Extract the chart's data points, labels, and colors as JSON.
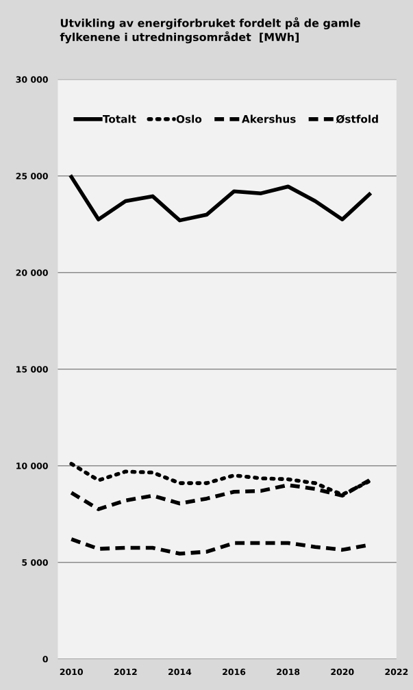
{
  "chart_data": {
    "type": "line",
    "title": "Utvikling av energiforbruket fordelt på de gamle\nfylkenene i utredningsområdet  [MWh]",
    "x": [
      2010,
      2011,
      2012,
      2013,
      2014,
      2015,
      2016,
      2017,
      2018,
      2019,
      2020,
      2021
    ],
    "series": [
      {
        "name": "Totalt",
        "color": "#000000",
        "line_style": "solid",
        "values": [
          24950,
          22750,
          23700,
          23950,
          22700,
          23000,
          24200,
          24100,
          24450,
          23700,
          22750,
          24050
        ]
      },
      {
        "name": "Oslo",
        "color": "#000000",
        "line_style": "dotted",
        "values": [
          10100,
          9250,
          9700,
          9650,
          9100,
          9100,
          9500,
          9350,
          9300,
          9100,
          8500,
          9200
        ]
      },
      {
        "name": "Akershus",
        "color": "#000000",
        "line_style": "dashed",
        "values": [
          8600,
          7750,
          8200,
          8450,
          8050,
          8300,
          8650,
          8700,
          9000,
          8800,
          8450,
          9250
        ]
      },
      {
        "name": "Østfold",
        "color": "#000000",
        "line_style": "dashed",
        "values": [
          6200,
          5700,
          5750,
          5750,
          5450,
          5550,
          6000,
          6000,
          6000,
          5800,
          5650,
          5900
        ]
      }
    ],
    "xlim": [
      2009.5,
      2022
    ],
    "xticks": [
      2010,
      2012,
      2014,
      2016,
      2018,
      2020,
      2022
    ],
    "ylim": [
      0,
      30000
    ],
    "yticks": [
      {
        "value": 0,
        "label": "0"
      },
      {
        "value": 5000,
        "label": "5 000"
      },
      {
        "value": 10000,
        "label": "10 000"
      },
      {
        "value": 15000,
        "label": "15 000"
      },
      {
        "value": 20000,
        "label": "20 000"
      },
      {
        "value": 25000,
        "label": "25 000"
      },
      {
        "value": 30000,
        "label": "30 000"
      }
    ],
    "grid": "y",
    "legend": "top",
    "marker": "none"
  }
}
